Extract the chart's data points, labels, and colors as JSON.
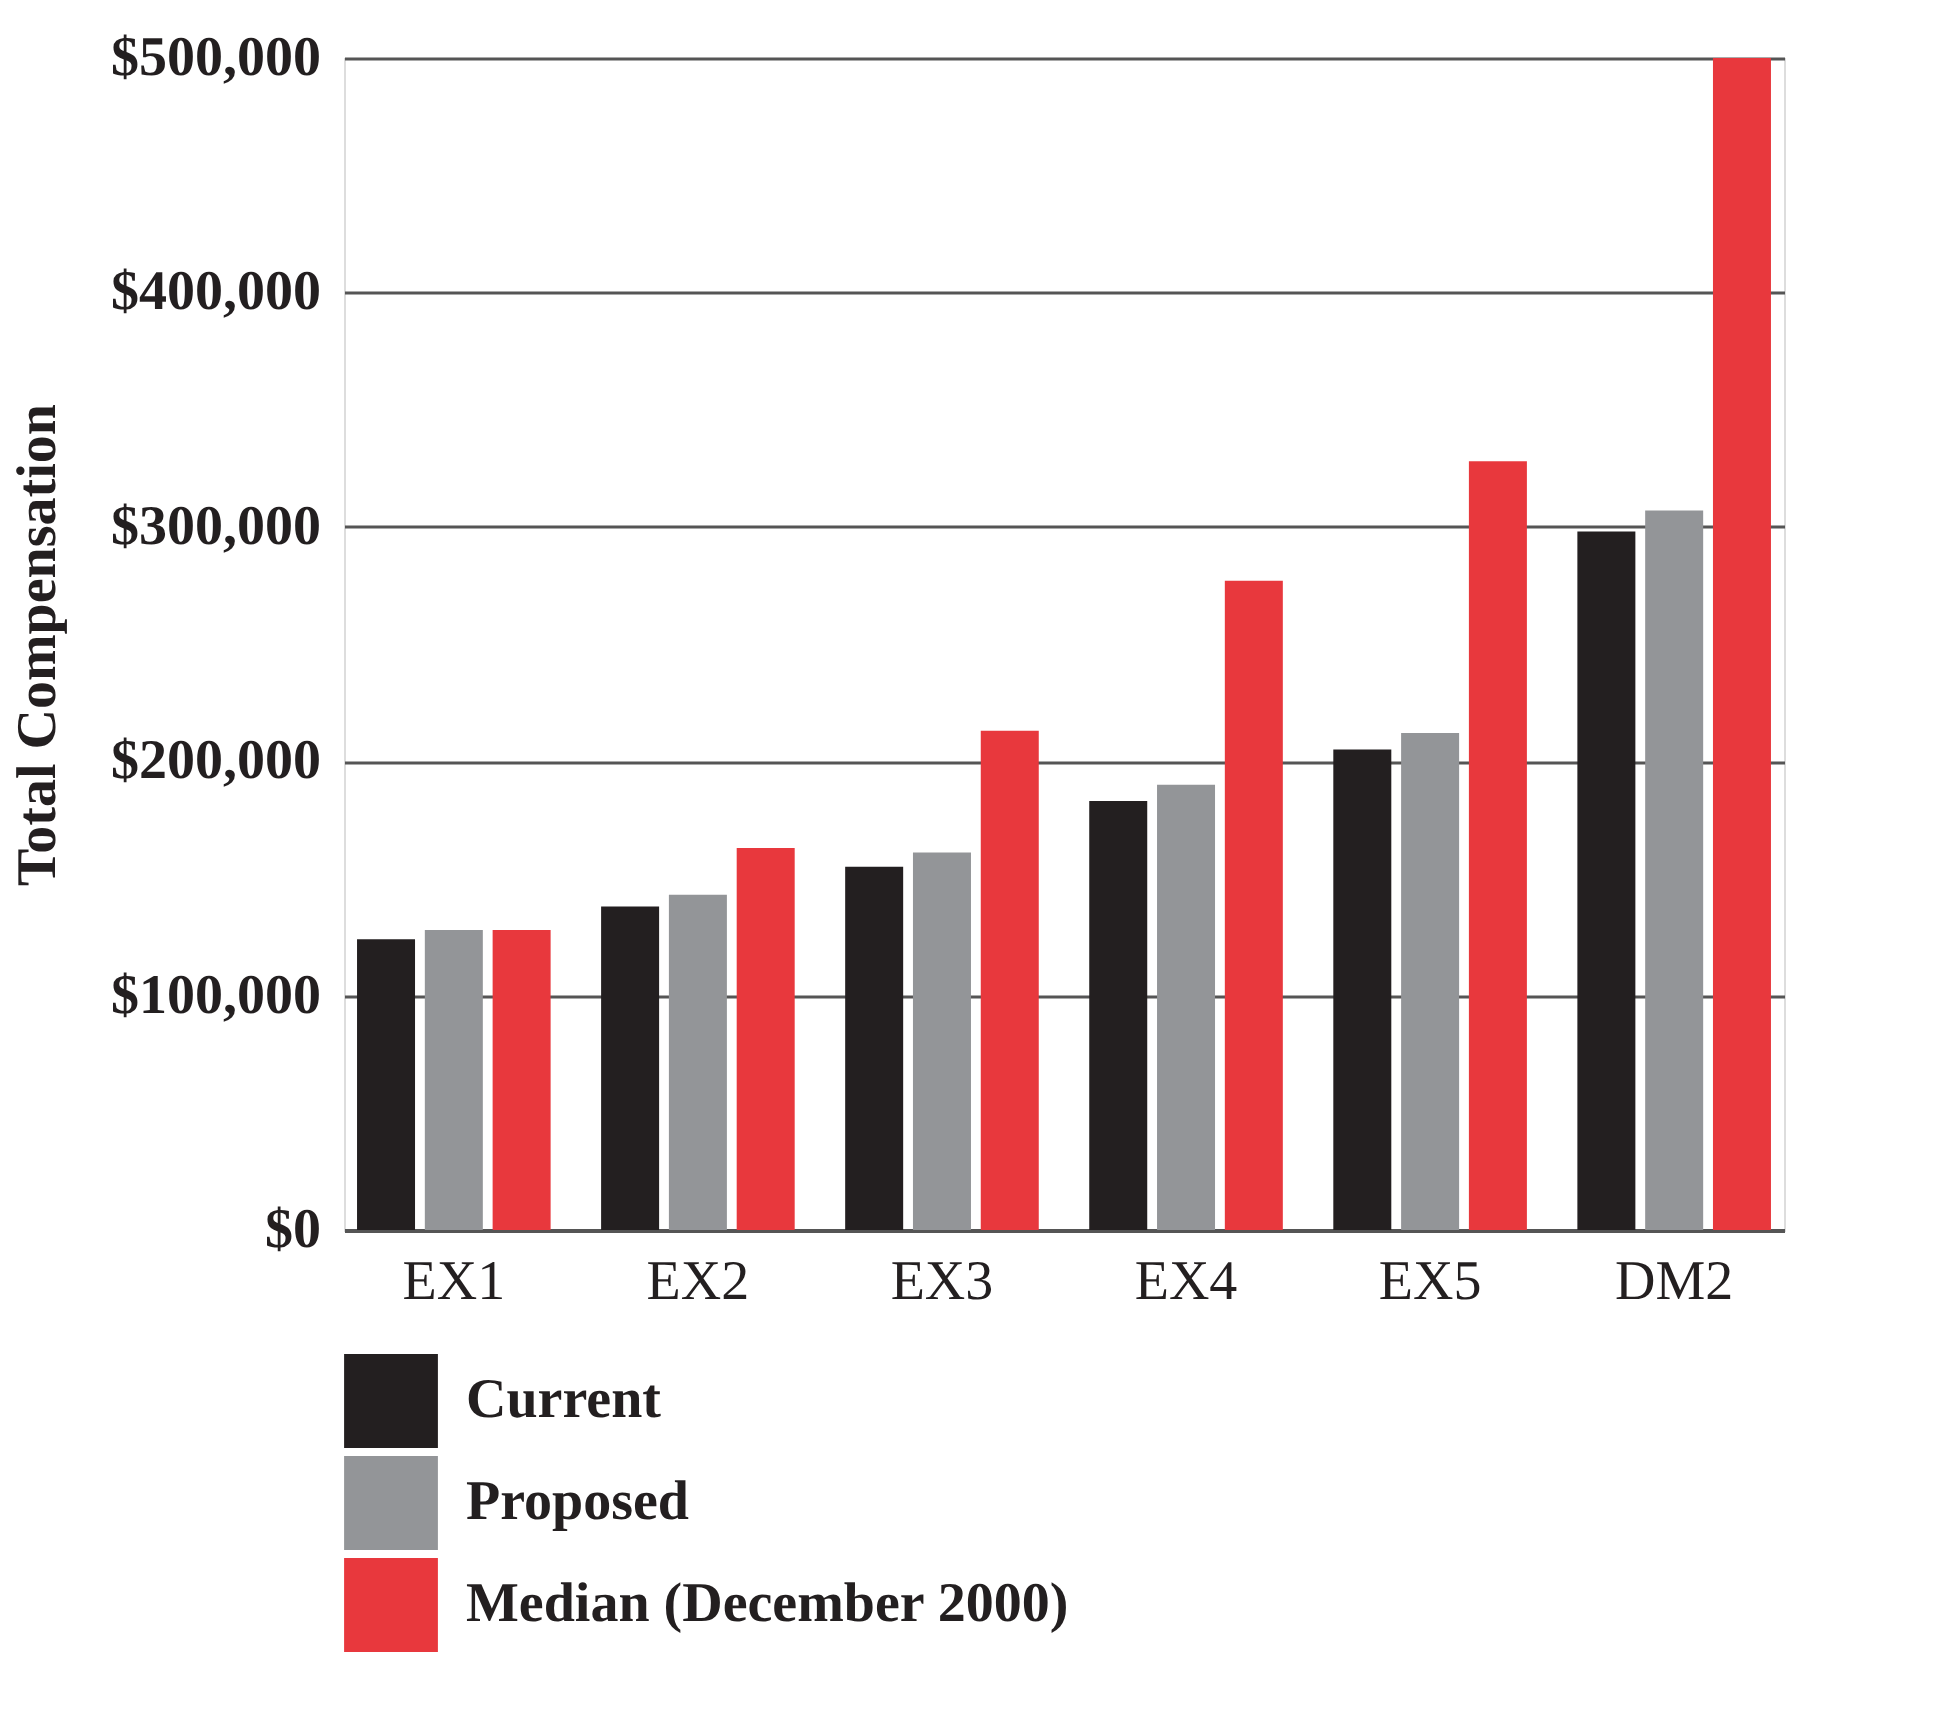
{
  "chart_data": {
    "type": "bar",
    "ylabel": "Total Compensation",
    "categories": [
      "EX1",
      "EX2",
      "EX3",
      "EX4",
      "EX5",
      "DM2"
    ],
    "series": [
      {
        "name": "Current",
        "color": "#231f20",
        "values": [
          124000,
          138000,
          155000,
          183000,
          205000,
          298000
        ]
      },
      {
        "name": "Proposed",
        "color": "#939598",
        "values": [
          128000,
          143000,
          161000,
          190000,
          212000,
          307000
        ]
      },
      {
        "name": "Median (December 2000)",
        "color": "#e8383d",
        "values": [
          128000,
          163000,
          213000,
          277000,
          328000,
          500000
        ]
      }
    ],
    "ylim": [
      0,
      500000
    ],
    "yticks": [
      {
        "value": 0,
        "label": "$0"
      },
      {
        "value": 100000,
        "label": "$100,000"
      },
      {
        "value": 200000,
        "label": "$200,000"
      },
      {
        "value": 300000,
        "label": "$300,000"
      },
      {
        "value": 400000,
        "label": "$400,000"
      },
      {
        "value": 500000,
        "label": "$500,000"
      }
    ],
    "grid": "y",
    "legend": "bottom"
  }
}
